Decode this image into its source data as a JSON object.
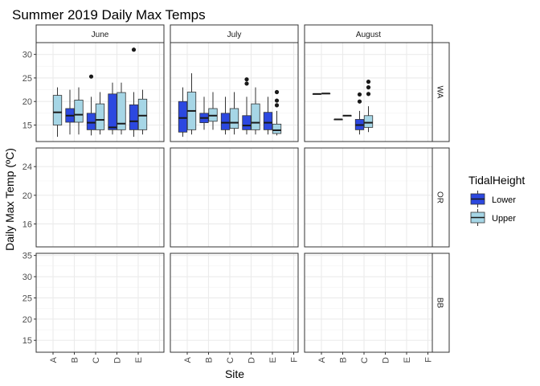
{
  "chart_data": {
    "type": "boxplot",
    "title": "Summer 2019 Daily Max Temps",
    "xlabel": "Site",
    "ylabel": "Daily Max Temp (ºC)",
    "legend": {
      "title": "TidalHeight",
      "placement": "right",
      "entries": [
        {
          "name": "Lower",
          "color": "#2c48e0"
        },
        {
          "name": "Upper",
          "color": "#a6d6e6"
        }
      ]
    },
    "facet_cols": [
      "June",
      "July",
      "August"
    ],
    "facet_rows": [
      "WA",
      "OR",
      "BB"
    ],
    "sites": [
      "A",
      "B",
      "C",
      "D",
      "E",
      "F"
    ],
    "row_axes": [
      {
        "row": "WA",
        "ylim": [
          11.5,
          32.5
        ],
        "ticks": [
          15,
          20,
          25,
          30
        ]
      },
      {
        "row": "OR",
        "ylim": [
          12.8,
          26.6
        ],
        "ticks": [
          16,
          20,
          24
        ]
      },
      {
        "row": "BB",
        "ylim": [
          12.2,
          35.5
        ],
        "ticks": [
          15,
          20,
          25,
          30,
          35
        ]
      }
    ],
    "panel_sites": {
      "June": [
        "A",
        "B",
        "C",
        "D",
        "E"
      ],
      "July": [
        "A",
        "B",
        "C",
        "D",
        "E",
        "F"
      ],
      "August": [
        "A",
        "B",
        "C",
        "D",
        "E",
        "F"
      ]
    },
    "boxes": [
      {
        "row": "WA",
        "col": "June",
        "site": "A",
        "tide": "Upper",
        "whislo": 12.5,
        "q1": 15,
        "median": 17.7,
        "q3": 21.3,
        "whishi": 23,
        "outliers": []
      },
      {
        "row": "WA",
        "col": "June",
        "site": "B",
        "tide": "Lower",
        "whislo": 13,
        "q1": 15.6,
        "median": 17,
        "q3": 18.5,
        "whishi": 22.5,
        "outliers": []
      },
      {
        "row": "WA",
        "col": "June",
        "site": "B",
        "tide": "Upper",
        "whislo": 13,
        "q1": 15.6,
        "median": 17.2,
        "q3": 20.3,
        "whishi": 23,
        "outliers": []
      },
      {
        "row": "WA",
        "col": "June",
        "site": "C",
        "tide": "Lower",
        "whislo": 12.8,
        "q1": 14,
        "median": 15.5,
        "q3": 17.5,
        "whishi": 21,
        "outliers": [
          25.3
        ]
      },
      {
        "row": "WA",
        "col": "June",
        "site": "C",
        "tide": "Upper",
        "whislo": 13,
        "q1": 14,
        "median": 16.1,
        "q3": 19.5,
        "whishi": 22,
        "outliers": []
      },
      {
        "row": "WA",
        "col": "June",
        "site": "D",
        "tide": "Lower",
        "whislo": 13,
        "q1": 14,
        "median": 14.5,
        "q3": 21.6,
        "whishi": 24,
        "outliers": []
      },
      {
        "row": "WA",
        "col": "June",
        "site": "D",
        "tide": "Upper",
        "whislo": 13,
        "q1": 14,
        "median": 15.3,
        "q3": 21.9,
        "whishi": 24,
        "outliers": []
      },
      {
        "row": "WA",
        "col": "June",
        "site": "E",
        "tide": "Lower",
        "whislo": 12.5,
        "q1": 14,
        "median": 15.8,
        "q3": 19.3,
        "whishi": 22,
        "outliers": [
          31
        ]
      },
      {
        "row": "WA",
        "col": "June",
        "site": "E",
        "tide": "Upper",
        "whislo": 13,
        "q1": 14,
        "median": 17,
        "q3": 20.5,
        "whishi": 22.5,
        "outliers": []
      },
      {
        "row": "WA",
        "col": "July",
        "site": "A",
        "tide": "Lower",
        "whislo": 12.5,
        "q1": 13.5,
        "median": 16.5,
        "q3": 20,
        "whishi": 23,
        "outliers": []
      },
      {
        "row": "WA",
        "col": "July",
        "site": "A",
        "tide": "Upper",
        "whislo": 13,
        "q1": 14,
        "median": 18,
        "q3": 22,
        "whishi": 26,
        "outliers": []
      },
      {
        "row": "WA",
        "col": "July",
        "site": "B",
        "tide": "Lower",
        "whislo": 14,
        "q1": 15.5,
        "median": 16.5,
        "q3": 17.5,
        "whishi": 21,
        "outliers": []
      },
      {
        "row": "WA",
        "col": "July",
        "site": "B",
        "tide": "Upper",
        "whislo": 14,
        "q1": 15.8,
        "median": 17,
        "q3": 18.5,
        "whishi": 22,
        "outliers": []
      },
      {
        "row": "WA",
        "col": "July",
        "site": "C",
        "tide": "Lower",
        "whislo": 13,
        "q1": 14,
        "median": 15.5,
        "q3": 17.5,
        "whishi": 21,
        "outliers": []
      },
      {
        "row": "WA",
        "col": "July",
        "site": "C",
        "tide": "Upper",
        "whislo": 13,
        "q1": 14.3,
        "median": 15.5,
        "q3": 18.5,
        "whishi": 22,
        "outliers": []
      },
      {
        "row": "WA",
        "col": "July",
        "site": "D",
        "tide": "Lower",
        "whislo": 13,
        "q1": 14,
        "median": 14.9,
        "q3": 17,
        "whishi": 21,
        "outliers": [
          24.7,
          23.8
        ]
      },
      {
        "row": "WA",
        "col": "July",
        "site": "D",
        "tide": "Upper",
        "whislo": 13,
        "q1": 14,
        "median": 15.5,
        "q3": 19.5,
        "whishi": 23,
        "outliers": []
      },
      {
        "row": "WA",
        "col": "July",
        "site": "E",
        "tide": "Lower",
        "whislo": 13,
        "q1": 14,
        "median": 15.5,
        "q3": 17.7,
        "whishi": 21,
        "outliers": []
      },
      {
        "row": "WA",
        "col": "July",
        "site": "E",
        "tide": "Upper",
        "whislo": 12.8,
        "q1": 13.2,
        "median": 13.9,
        "q3": 15.2,
        "whishi": 18,
        "outliers": [
          22,
          20.2,
          19.2
        ]
      },
      {
        "row": "WA",
        "col": "August",
        "site": "A",
        "tide": "Lower",
        "whislo": 21.6,
        "q1": 21.6,
        "median": 21.6,
        "q3": 21.6,
        "whishi": 21.6,
        "outliers": []
      },
      {
        "row": "WA",
        "col": "August",
        "site": "A",
        "tide": "Upper",
        "whislo": 21.7,
        "q1": 21.7,
        "median": 21.7,
        "q3": 21.7,
        "whishi": 21.7,
        "outliers": []
      },
      {
        "row": "WA",
        "col": "August",
        "site": "B",
        "tide": "Lower",
        "whislo": 16.2,
        "q1": 16.2,
        "median": 16.2,
        "q3": 16.2,
        "whishi": 16.2,
        "outliers": []
      },
      {
        "row": "WA",
        "col": "August",
        "site": "B",
        "tide": "Upper",
        "whislo": 17,
        "q1": 17,
        "median": 17,
        "q3": 17,
        "whishi": 17,
        "outliers": []
      },
      {
        "row": "WA",
        "col": "August",
        "site": "C",
        "tide": "Lower",
        "whislo": 13,
        "q1": 14,
        "median": 15,
        "q3": 16.2,
        "whishi": 18,
        "outliers": [
          21.5,
          20
        ]
      },
      {
        "row": "WA",
        "col": "August",
        "site": "C",
        "tide": "Upper",
        "whislo": 13.5,
        "q1": 14.5,
        "median": 15.5,
        "q3": 17,
        "whishi": 19,
        "outliers": [
          24.2,
          23,
          21.6
        ]
      }
    ]
  }
}
